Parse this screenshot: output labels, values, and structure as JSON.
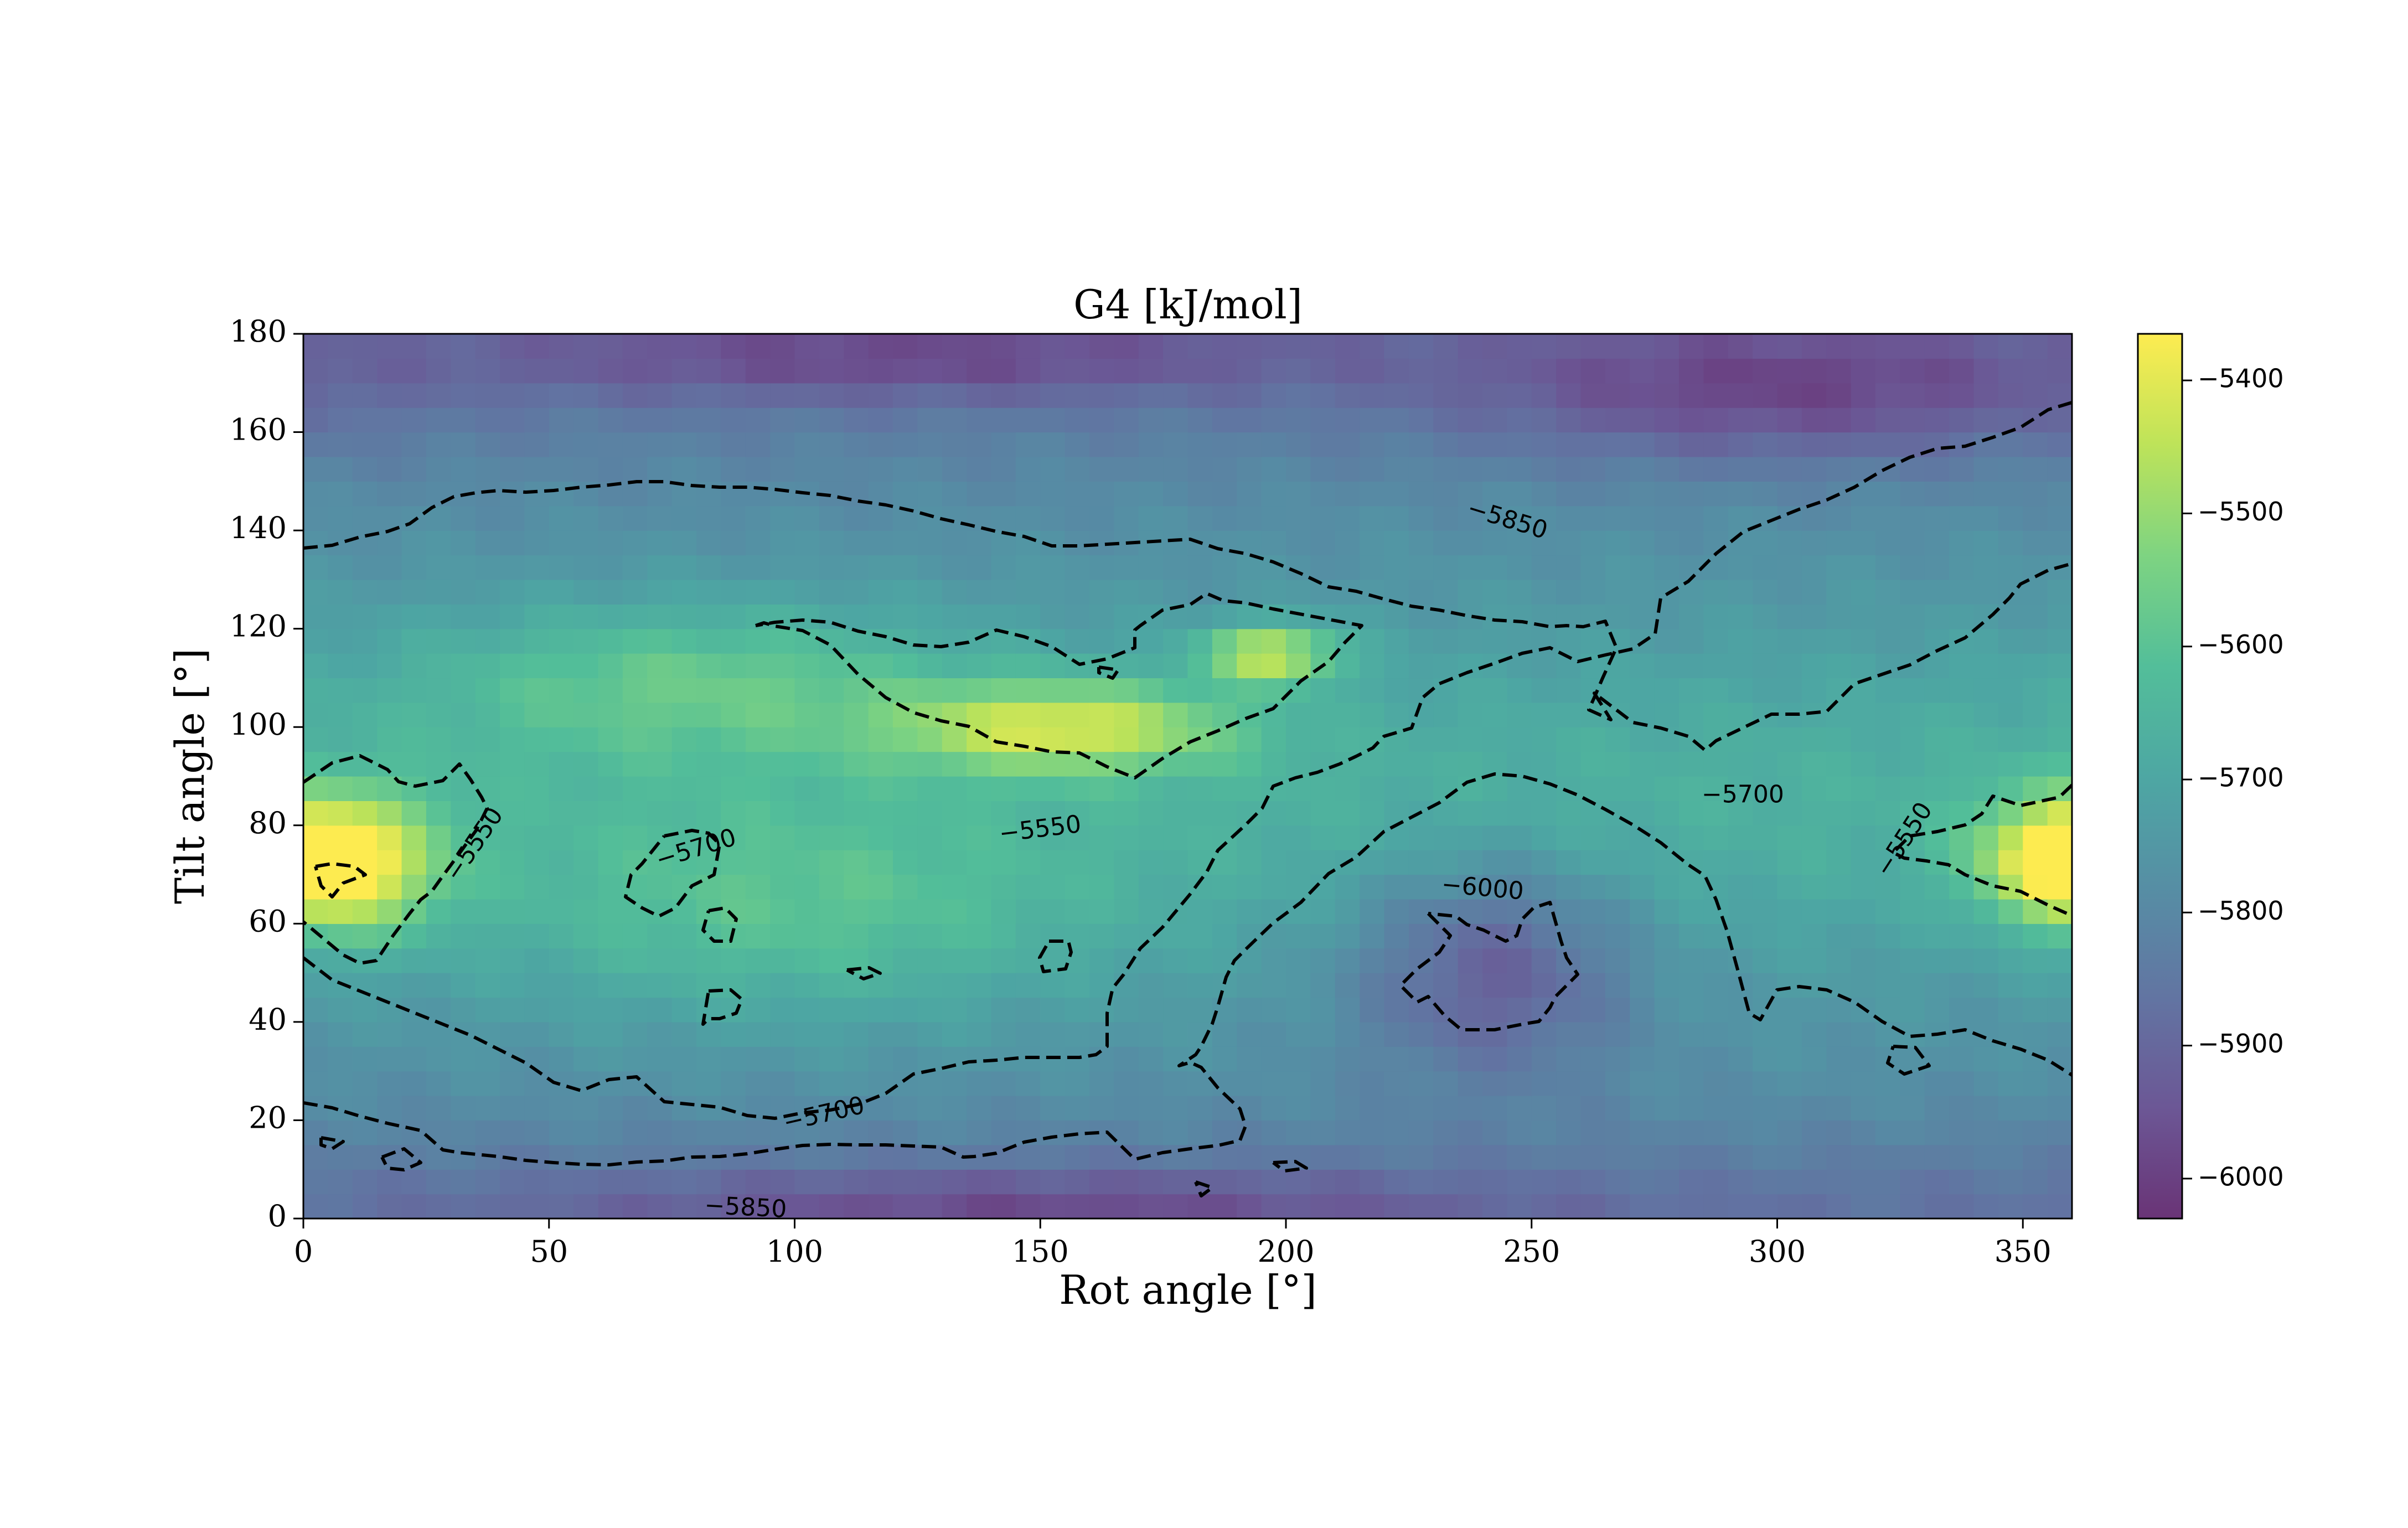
{
  "chart_data": {
    "type": "heatmap",
    "title": "G4  [kJ/mol]",
    "xlabel": "Rot angle [$^o$]",
    "ylabel": "Tilt angle [$^o$]",
    "xlabel_display": "Rot angle [°]",
    "ylabel_display": "Tilt angle [°]",
    "xlim": [
      0,
      360
    ],
    "ylim": [
      0,
      180
    ],
    "xticks": [
      0,
      50,
      100,
      150,
      200,
      250,
      300,
      350
    ],
    "yticks": [
      0,
      20,
      40,
      60,
      80,
      100,
      120,
      140,
      160,
      180
    ],
    "colormap": "viridis",
    "colormap_alpha": 0.8,
    "colorbar": {
      "range": [
        -6030,
        -5365
      ],
      "ticks": [
        -5400,
        -5500,
        -5600,
        -5700,
        -5800,
        -5900,
        -6000
      ],
      "tick_labels": [
        "−5400",
        "−5500",
        "−5600",
        "−5700",
        "−5800",
        "−5900",
        "−6000"
      ]
    },
    "contour_levels": [
      -6000,
      -5850,
      -5700,
      -5550
    ],
    "contour_labels": [
      {
        "text": "−5850",
        "x": 245,
        "y": 142,
        "angle": 17
      },
      {
        "text": "−5700",
        "x": 80,
        "y": 75,
        "angle": -17
      },
      {
        "text": "−5550",
        "x": 150,
        "y": 79,
        "angle": -7
      },
      {
        "text": "−5550",
        "x": 35,
        "y": 76,
        "angle": -56
      },
      {
        "text": "−6000",
        "x": 240,
        "y": 67,
        "angle": 5
      },
      {
        "text": "−5700",
        "x": 106,
        "y": 21,
        "angle": -13
      },
      {
        "text": "−5850",
        "x": 90,
        "y": 2,
        "angle": 3
      },
      {
        "text": "−5700",
        "x": 293,
        "y": 86,
        "angle": 0
      },
      {
        "text": "−5550",
        "x": 326,
        "y": 77,
        "angle": -57
      }
    ],
    "energy_features": [
      {
        "kind": "max",
        "x": 10,
        "y": 72,
        "value": -5400,
        "sx": 18,
        "sy": 14
      },
      {
        "kind": "max",
        "x": 355,
        "y": 73,
        "value": -5450,
        "sx": 16,
        "sy": 12
      },
      {
        "kind": "max",
        "x": 155,
        "y": 100,
        "value": -5430,
        "sx": 34,
        "sy": 9
      },
      {
        "kind": "max",
        "x": 197,
        "y": 115,
        "value": -5400,
        "sx": 14,
        "sy": 6
      },
      {
        "kind": "max",
        "x": 80,
        "y": 110,
        "value": -5600,
        "sx": 55,
        "sy": 16
      },
      {
        "kind": "max",
        "x": 100,
        "y": 60,
        "value": -5640,
        "sx": 60,
        "sy": 22
      },
      {
        "kind": "min",
        "x": 242,
        "y": 52,
        "value": -6020,
        "sx": 28,
        "sy": 22
      },
      {
        "kind": "min",
        "x": 300,
        "y": 168,
        "value": -5960,
        "sx": 60,
        "sy": 14
      },
      {
        "kind": "min",
        "x": 120,
        "y": 175,
        "value": -5930,
        "sx": 80,
        "sy": 8
      },
      {
        "kind": "min",
        "x": 150,
        "y": 2,
        "value": -5930,
        "sx": 90,
        "sy": 8
      }
    ]
  }
}
